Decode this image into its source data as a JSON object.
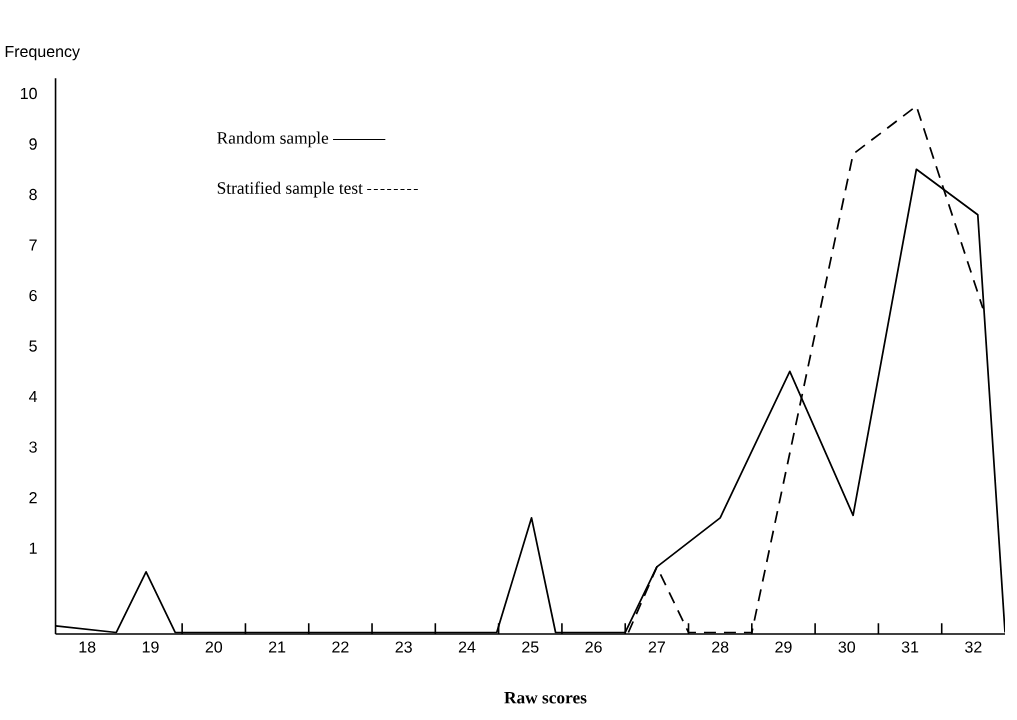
{
  "chart_data": {
    "type": "line",
    "xlabel": "Raw scores",
    "ylabel": "Frequency",
    "xlim": [
      17.5,
      32.5
    ],
    "ylim": [
      -0.7,
      10.3
    ],
    "xticks": [
      18,
      19,
      20,
      21,
      22,
      23,
      24,
      25,
      26,
      27,
      28,
      29,
      30,
      31,
      32,
      {
        "value": 19.5,
        "label": null
      },
      {
        "value": 20.5,
        "label": null
      },
      {
        "value": 21.5,
        "label": null
      },
      {
        "value": 22.5,
        "label": null
      },
      {
        "value": 23.5,
        "label": null
      },
      {
        "value": 24.5,
        "label": null
      },
      {
        "value": 25.5,
        "label": null
      },
      {
        "value": 26.5,
        "label": null
      },
      {
        "value": 27.5,
        "label": null
      },
      {
        "value": 28.5,
        "label": null
      },
      {
        "value": 29.5,
        "label": null
      },
      {
        "value": 30.5,
        "label": null
      },
      {
        "value": 31.5,
        "label": null
      }
    ],
    "yticks": [
      1,
      2,
      3,
      4,
      5,
      6,
      7,
      8,
      9,
      10
    ],
    "grid": false,
    "legend": "top left",
    "marker": "none",
    "series": [
      {
        "name": "Random sample",
        "color": "#000000",
        "line_style": "solid",
        "x": [
          17.5,
          18.46,
          18.93,
          19.39,
          24.47,
          25.02,
          25.4,
          26.5,
          27.0,
          28.0,
          29.1,
          30.1,
          31.1,
          32.07,
          32.5
        ],
        "values": [
          -0.54,
          -0.67,
          0.53,
          -0.67,
          -0.67,
          1.6,
          -0.67,
          -0.67,
          0.63,
          1.6,
          4.5,
          1.65,
          8.5,
          7.6,
          -0.67
        ]
      },
      {
        "name": "Stratified sample test",
        "color": "#000000",
        "line_style": "dashed",
        "x": [
          26.55,
          27.0,
          27.5,
          28.5,
          30.1,
          31.1,
          32.15
        ],
        "values": [
          -0.67,
          0.63,
          -0.67,
          -0.67,
          8.8,
          9.75,
          5.75
        ]
      }
    ]
  }
}
